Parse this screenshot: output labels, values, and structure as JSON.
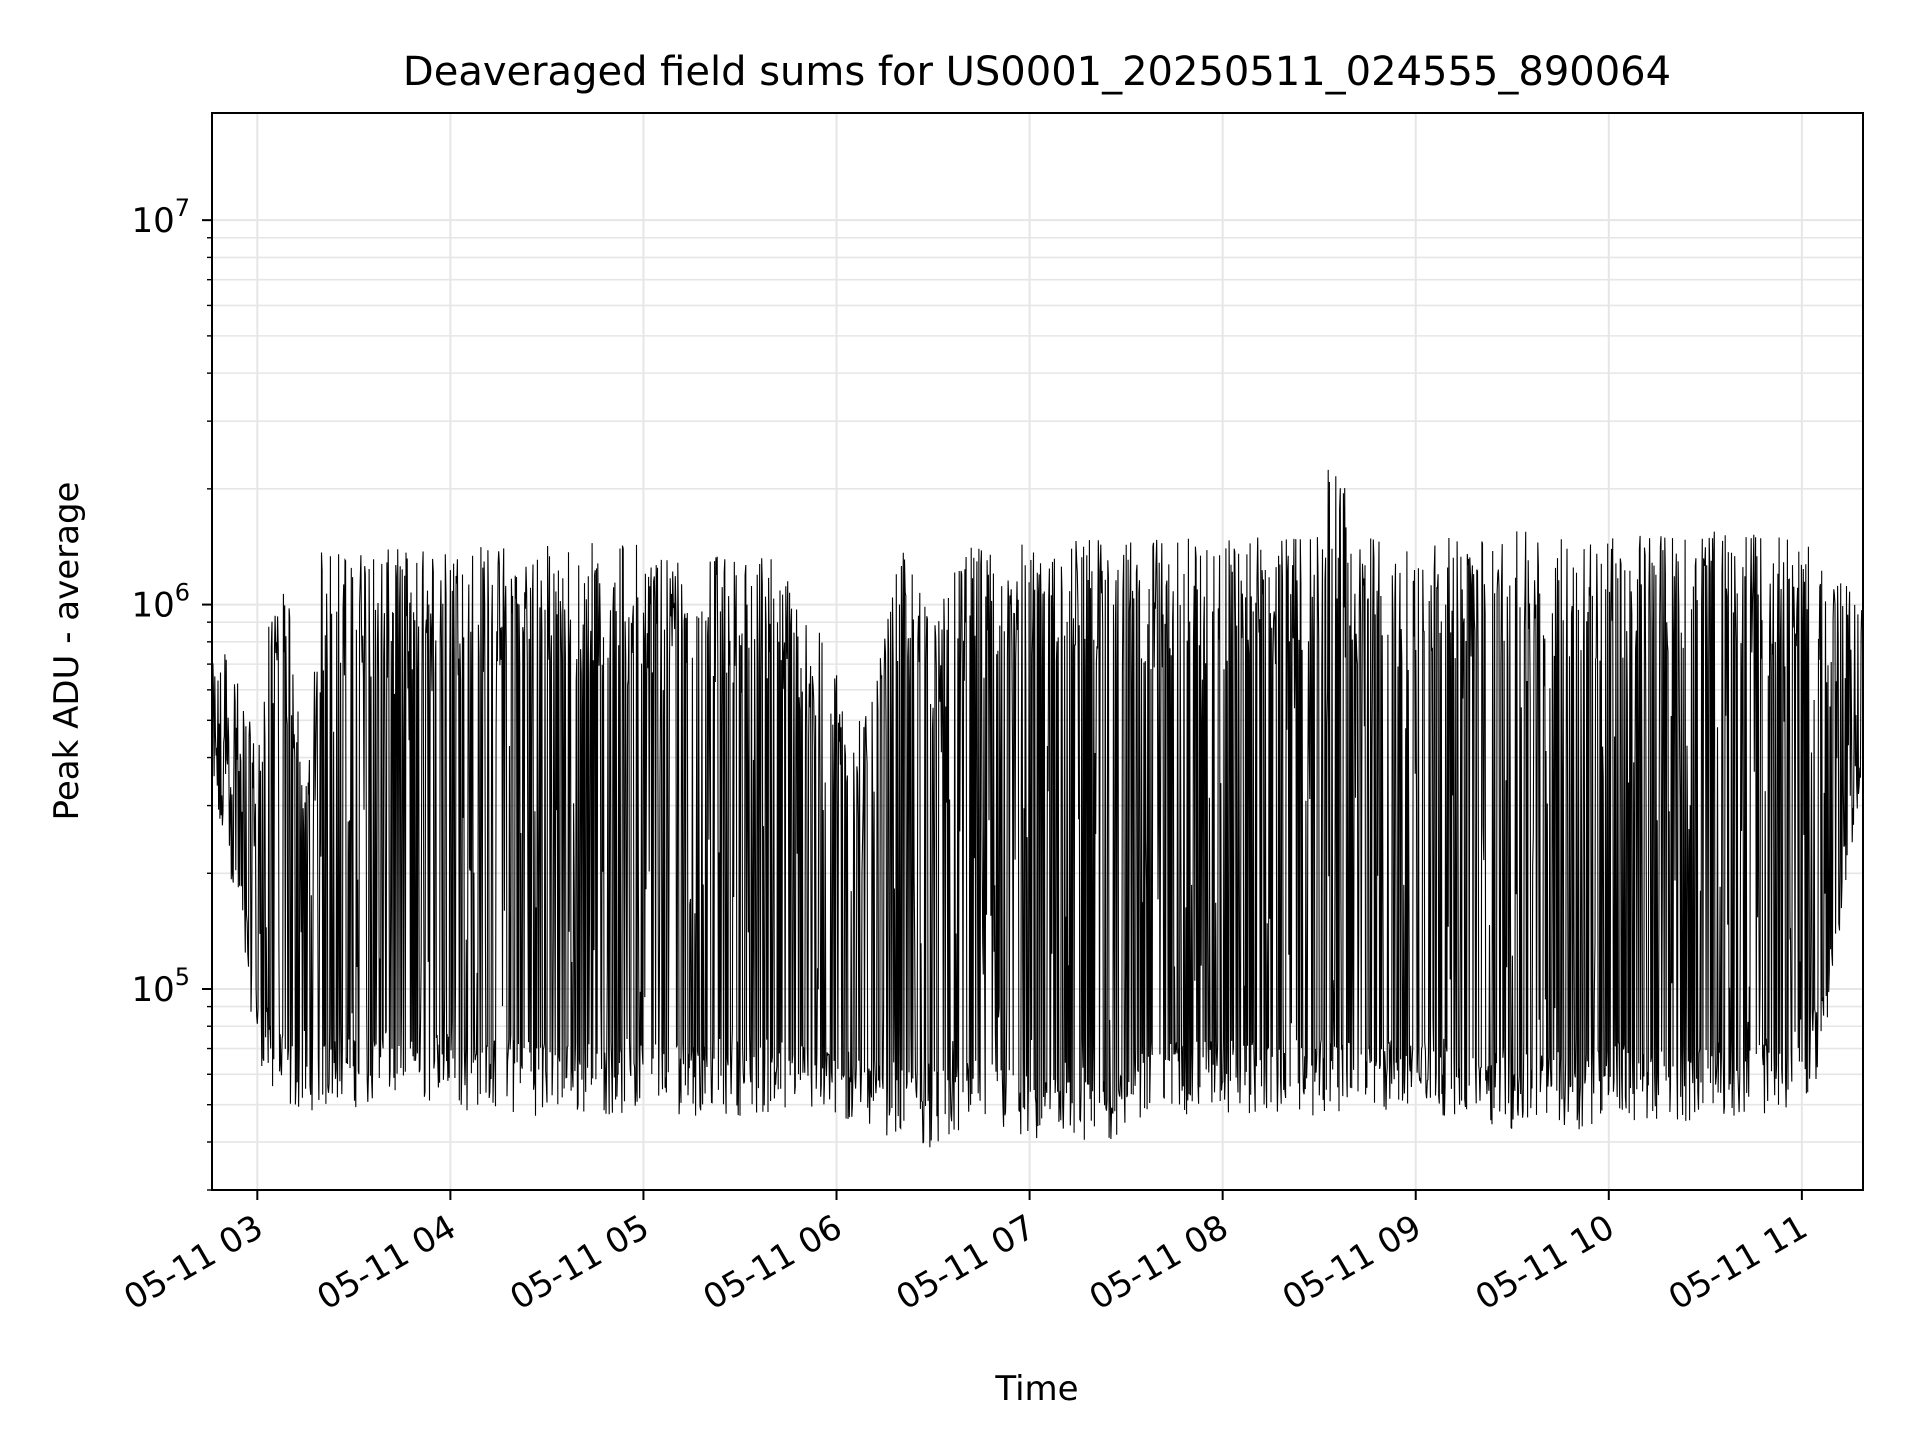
{
  "chart_data": {
    "type": "line",
    "title": "Deaveraged field sums for US0001_20250511_024555_890064",
    "xlabel": "Time",
    "ylabel": "Peak ADU - average",
    "y_scale": "log",
    "ylim": [
      30000,
      19000000
    ],
    "xlim": [
      "2025-05-11 02:45:55",
      "2025-05-11 11:19:00"
    ],
    "x_ticks": [
      {
        "value": "2025-05-11 03:00",
        "label": "05-11 03"
      },
      {
        "value": "2025-05-11 04:00",
        "label": "05-11 04"
      },
      {
        "value": "2025-05-11 05:00",
        "label": "05-11 05"
      },
      {
        "value": "2025-05-11 06:00",
        "label": "05-11 06"
      },
      {
        "value": "2025-05-11 07:00",
        "label": "05-11 07"
      },
      {
        "value": "2025-05-11 08:00",
        "label": "05-11 08"
      },
      {
        "value": "2025-05-11 09:00",
        "label": "05-11 09"
      },
      {
        "value": "2025-05-11 10:00",
        "label": "05-11 10"
      },
      {
        "value": "2025-05-11 11:00",
        "label": "05-11 11"
      }
    ],
    "y_ticks": [
      {
        "value": 100000,
        "base": "10",
        "exp": "5"
      },
      {
        "value": 1000000,
        "base": "10",
        "exp": "6"
      },
      {
        "value": 10000000,
        "base": "10",
        "exp": "7"
      }
    ],
    "grid": true,
    "line_color": "#000000",
    "grid_color": "#e6e6e6",
    "series": [
      {
        "values_note": "approximate envelope of the dense time series",
        "x": [
          "2025-05-11 02:46",
          "2025-05-11 02:50",
          "2025-05-11 02:55",
          "2025-05-11 03:00",
          "2025-05-11 03:05",
          "2025-05-11 03:10",
          "2025-05-11 03:15",
          "2025-05-11 03:20",
          "2025-05-11 03:25",
          "2025-05-11 03:30",
          "2025-05-11 03:35",
          "2025-05-11 03:40",
          "2025-05-11 03:45",
          "2025-05-11 03:50",
          "2025-05-11 03:55",
          "2025-05-11 04:00",
          "2025-05-11 04:05",
          "2025-05-11 04:10",
          "2025-05-11 04:20",
          "2025-05-11 04:30",
          "2025-05-11 04:40",
          "2025-05-11 04:50",
          "2025-05-11 05:00",
          "2025-05-11 05:10",
          "2025-05-11 05:20",
          "2025-05-11 05:30",
          "2025-05-11 05:40",
          "2025-05-11 05:50",
          "2025-05-11 06:00",
          "2025-05-11 06:10",
          "2025-05-11 06:20",
          "2025-05-11 06:30",
          "2025-05-11 06:40",
          "2025-05-11 06:50",
          "2025-05-11 07:00",
          "2025-05-11 07:10",
          "2025-05-11 07:20",
          "2025-05-11 07:30",
          "2025-05-11 07:40",
          "2025-05-11 07:50",
          "2025-05-11 08:00",
          "2025-05-11 08:10",
          "2025-05-11 08:20",
          "2025-05-11 08:30",
          "2025-05-11 08:35",
          "2025-05-11 08:40",
          "2025-05-11 08:50",
          "2025-05-11 09:00",
          "2025-05-11 09:10",
          "2025-05-11 09:20",
          "2025-05-11 09:30",
          "2025-05-11 09:40",
          "2025-05-11 09:50",
          "2025-05-11 10:00",
          "2025-05-11 10:10",
          "2025-05-11 10:20",
          "2025-05-11 10:30",
          "2025-05-11 10:40",
          "2025-05-11 10:50",
          "2025-05-11 11:00",
          "2025-05-11 11:05",
          "2025-05-11 11:10",
          "2025-05-11 11:15",
          "2025-05-11 11:19"
        ],
        "low": [
          280000,
          260000,
          150000,
          80000,
          60000,
          55000,
          58000,
          55000,
          60000,
          58000,
          56000,
          60000,
          60000,
          58000,
          60000,
          58000,
          56000,
          58000,
          55000,
          55000,
          55000,
          55000,
          55000,
          55000,
          55000,
          55000,
          55000,
          55000,
          52000,
          50000,
          48000,
          45000,
          48000,
          50000,
          45000,
          44000,
          42000,
          50000,
          55000,
          55000,
          55000,
          55000,
          55000,
          55000,
          55000,
          55000,
          55000,
          55000,
          55000,
          52000,
          50000,
          52000,
          50000,
          55000,
          52000,
          52000,
          55000,
          55000,
          55000,
          58000,
          70000,
          120000,
          250000,
          350000
        ],
        "high": [
          700000,
          800000,
          600000,
          420000,
          1200000,
          1000000,
          330000,
          1400000,
          1400000,
          1400000,
          1400000,
          1400000,
          1400000,
          1400000,
          1400000,
          1400000,
          1400000,
          1450000,
          1450000,
          1450000,
          1450000,
          1500000,
          1450000,
          1450000,
          1400000,
          1300000,
          1400000,
          1000000,
          700000,
          500000,
          1400000,
          1000000,
          1400000,
          1450000,
          1450000,
          1500000,
          1500000,
          1450000,
          1500000,
          1500000,
          1500000,
          1500000,
          1500000,
          1500000,
          3200000,
          1500000,
          1500000,
          1500000,
          1500000,
          1500000,
          1550000,
          1550000,
          1550000,
          1550000,
          1550000,
          1550000,
          1550000,
          1550000,
          1550000,
          1500000,
          1300000,
          1200000,
          1100000,
          1000000
        ]
      }
    ]
  }
}
